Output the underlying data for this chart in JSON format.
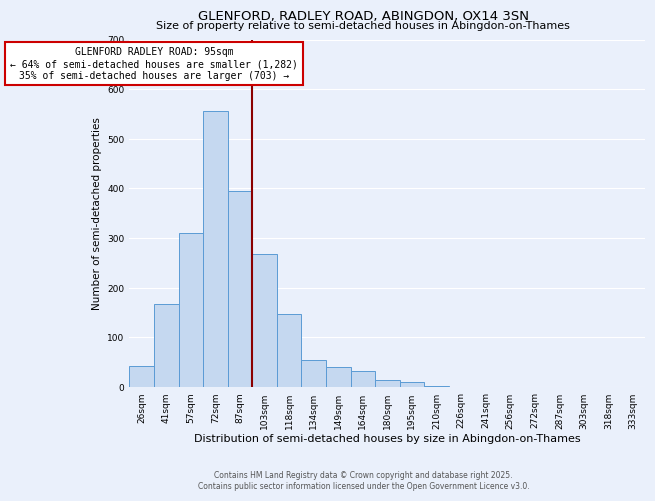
{
  "title": "GLENFORD, RADLEY ROAD, ABINGDON, OX14 3SN",
  "subtitle": "Size of property relative to semi-detached houses in Abingdon-on-Thames",
  "xlabel": "Distribution of semi-detached houses by size in Abingdon-on-Thames",
  "ylabel": "Number of semi-detached properties",
  "bar_labels": [
    "26sqm",
    "41sqm",
    "57sqm",
    "72sqm",
    "87sqm",
    "103sqm",
    "118sqm",
    "134sqm",
    "149sqm",
    "164sqm",
    "180sqm",
    "195sqm",
    "210sqm",
    "226sqm",
    "241sqm",
    "256sqm",
    "272sqm",
    "287sqm",
    "303sqm",
    "318sqm",
    "333sqm"
  ],
  "bar_values": [
    42,
    168,
    310,
    556,
    395,
    268,
    148,
    55,
    40,
    33,
    15,
    10,
    2,
    0,
    0,
    0,
    0,
    0,
    0,
    0,
    0
  ],
  "ylim": [
    0,
    700
  ],
  "yticks": [
    0,
    100,
    200,
    300,
    400,
    500,
    600,
    700
  ],
  "bar_color": "#c5d8f0",
  "bar_edge_color": "#5b9bd5",
  "bg_color": "#eaf0fb",
  "grid_color": "#ffffff",
  "vline_color": "#8b0000",
  "annotation_title": "GLENFORD RADLEY ROAD: 95sqm",
  "annotation_line1": "← 64% of semi-detached houses are smaller (1,282)",
  "annotation_line2": "35% of semi-detached houses are larger (703) →",
  "annotation_box_color": "#ffffff",
  "annotation_border_color": "#cc0000",
  "footer_line1": "Contains HM Land Registry data © Crown copyright and database right 2025.",
  "footer_line2": "Contains public sector information licensed under the Open Government Licence v3.0.",
  "title_fontsize": 9.5,
  "subtitle_fontsize": 8,
  "xlabel_fontsize": 8,
  "ylabel_fontsize": 7.5,
  "tick_fontsize": 6.5,
  "annotation_fontsize": 7,
  "footer_fontsize": 5.5
}
